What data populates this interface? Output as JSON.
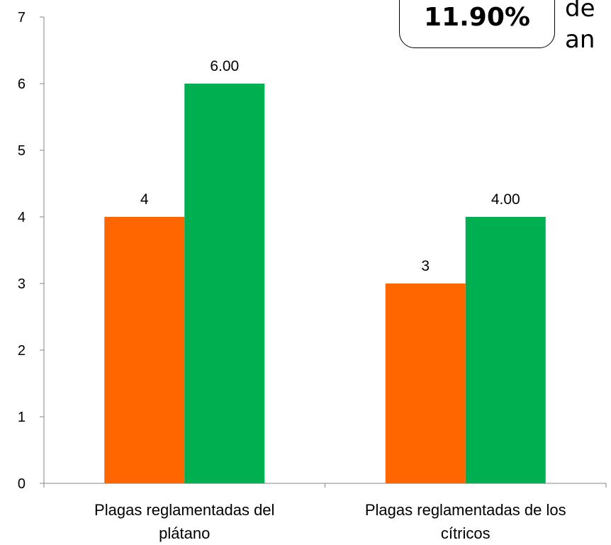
{
  "chart_data": {
    "type": "bar",
    "categories": [
      [
        "Plagas reglamentadas del",
        "plátano"
      ],
      [
        "Plagas reglamentadas de los",
        "cítricos"
      ]
    ],
    "series": [
      {
        "color": "#FF6600",
        "values": [
          4,
          3
        ],
        "data_labels": [
          "4",
          "3"
        ]
      },
      {
        "color": "#00B050",
        "values": [
          6,
          4
        ],
        "data_labels": [
          "6.00",
          "4.00"
        ]
      }
    ],
    "ylim": [
      0,
      7
    ],
    "yticks": [
      0,
      1,
      2,
      3,
      4,
      5,
      6,
      7
    ],
    "grid": false
  },
  "callout": {
    "value": "11.90%",
    "side_text": [
      "de",
      "an"
    ]
  }
}
